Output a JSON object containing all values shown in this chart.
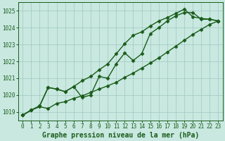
{
  "xlabel": "Graphe pression niveau de la mer (hPa)",
  "ylim": [
    1018.5,
    1025.5
  ],
  "xlim": [
    -0.5,
    23.5
  ],
  "yticks": [
    1019,
    1020,
    1021,
    1022,
    1023,
    1024,
    1025
  ],
  "xticks": [
    0,
    1,
    2,
    3,
    4,
    5,
    6,
    7,
    8,
    9,
    10,
    11,
    12,
    13,
    14,
    15,
    16,
    17,
    18,
    19,
    20,
    21,
    22,
    23
  ],
  "bg_color": "#c8e8e0",
  "grid_color": "#a0c8c0",
  "line_color": "#1a5c1a",
  "series1": [
    1018.8,
    1019.1,
    1019.3,
    1019.2,
    1019.5,
    1019.6,
    1019.8,
    1019.95,
    1020.15,
    1020.35,
    1020.55,
    1020.75,
    1021.05,
    1021.3,
    1021.6,
    1021.9,
    1022.2,
    1022.55,
    1022.9,
    1023.25,
    1023.6,
    1023.9,
    1024.2,
    1024.4
  ],
  "series2": [
    1018.8,
    1019.1,
    1019.35,
    1020.45,
    1020.35,
    1020.2,
    1020.5,
    1020.85,
    1021.1,
    1021.5,
    1021.85,
    1022.45,
    1023.05,
    1023.55,
    1023.75,
    1024.1,
    1024.4,
    1024.6,
    1024.85,
    1025.1,
    1024.65,
    1024.55,
    1024.5,
    1024.4
  ],
  "series3": [
    1018.8,
    1019.1,
    1019.35,
    1020.45,
    1020.35,
    1020.2,
    1020.5,
    1019.85,
    1020.0,
    1021.1,
    1021.0,
    1021.85,
    1022.5,
    1022.05,
    1022.45,
    1023.65,
    1024.0,
    1024.4,
    1024.7,
    1024.9,
    1024.9,
    1024.5,
    1024.5,
    1024.4
  ],
  "marker": "D",
  "markersize": 2.5,
  "linewidth": 1.0,
  "tick_fontsize": 5.5,
  "xlabel_fontsize": 7.0
}
